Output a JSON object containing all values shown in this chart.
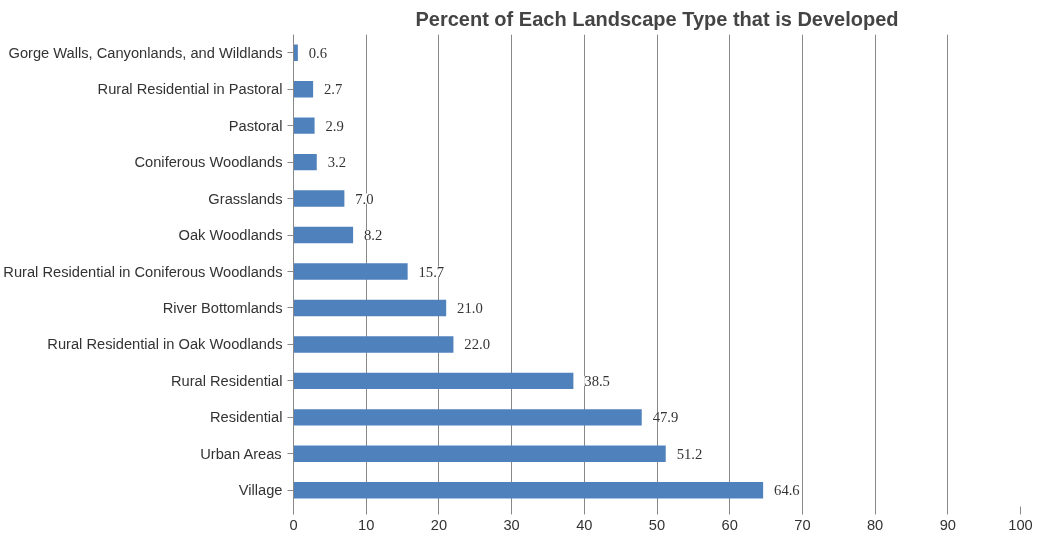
{
  "chart_data": {
    "type": "bar",
    "orientation": "horizontal",
    "title": "Percent of Each Landscape Type that is Developed",
    "categories": [
      "Gorge Walls, Canyonlands, and Wildlands",
      "Rural Residential in Pastoral",
      "Pastoral",
      "Coniferous Woodlands",
      "Grasslands",
      "Oak Woodlands",
      "Rural Residential in Coniferous Woodlands",
      "River Bottomlands",
      "Rural Residential in Oak Woodlands",
      "Rural Residential",
      "Residential",
      "Urban Areas",
      "Village"
    ],
    "values": [
      0.6,
      2.7,
      2.9,
      3.2,
      7.0,
      8.2,
      15.7,
      21.0,
      22.0,
      38.5,
      47.9,
      51.2,
      64.6
    ],
    "value_labels": [
      "0.6",
      "2.7",
      "2.9",
      "3.2",
      "7.0",
      "8.2",
      "15.7",
      "21.0",
      "22.0",
      "38.5",
      "47.9",
      "51.2",
      "64.6"
    ],
    "color": "#4f81bd",
    "xlim": [
      0,
      100
    ],
    "xticks": [
      0,
      10,
      20,
      30,
      40,
      50,
      60,
      70,
      80,
      90,
      100
    ],
    "grid": "x"
  }
}
